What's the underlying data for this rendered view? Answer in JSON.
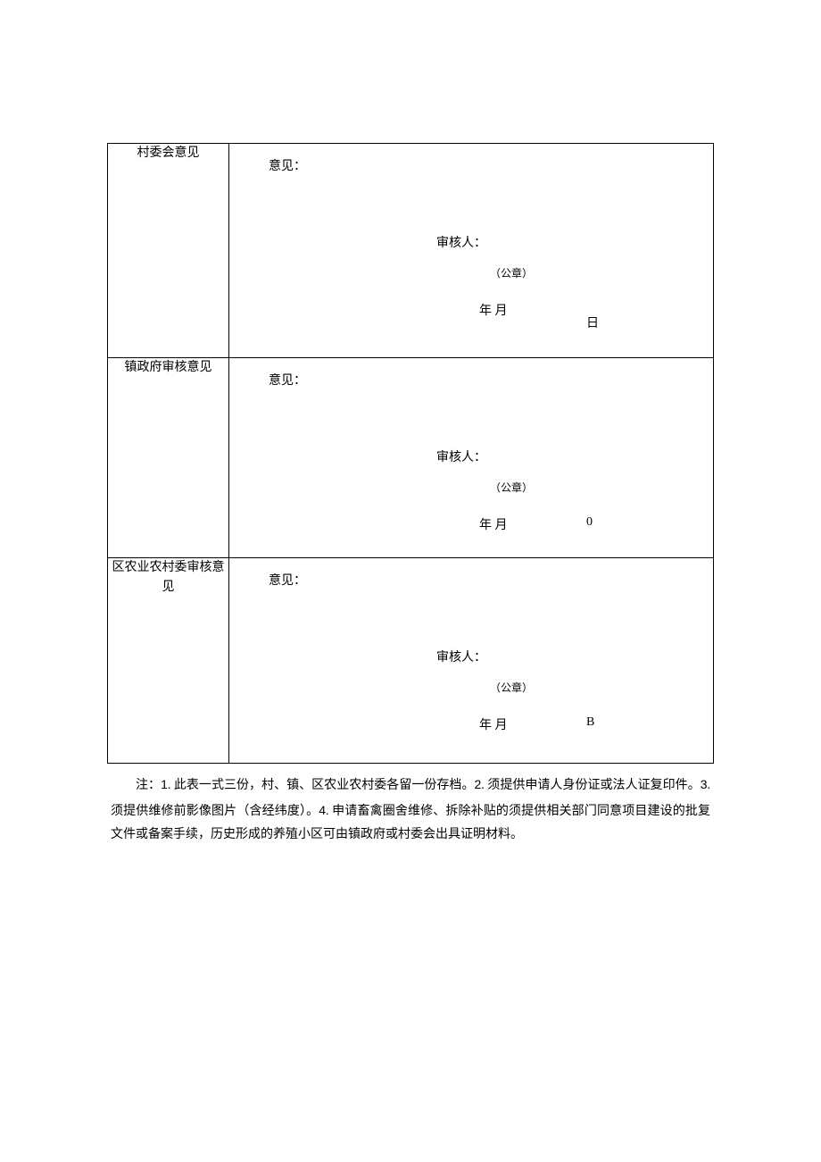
{
  "rows": [
    {
      "label": "村委会意见",
      "opinion_label": "意见：",
      "reviewer_label": "审核人：",
      "seal_label": "（公章）",
      "date_label": "年 月",
      "date_suffix": "日"
    },
    {
      "label": "镇政府审核意见",
      "opinion_label": "意见：",
      "reviewer_label": "审核人：",
      "seal_label": "（公章）",
      "date_label": "年 月",
      "date_suffix": "0"
    },
    {
      "label": "区农业农村委审核意见",
      "opinion_label": "意见：",
      "reviewer_label": "审核人：",
      "seal_label": "（公章）",
      "date_label": "年 月",
      "date_suffix": "B"
    }
  ],
  "notes": {
    "prefix": "注：",
    "items": [
      {
        "num": "1",
        "text": ". 此表一式三份，村、镇、区农业农村委各留一份存档。"
      },
      {
        "num": "2",
        "text": ". 须提供申请人身份证或法人证复印件。"
      },
      {
        "num": "3",
        "text": ". 须提供维修前影像图片（含经纬度）。"
      },
      {
        "num": "4",
        "text": ". 申请畜禽圈舍维修、拆除补贴的须提供相关部门同意项目建设的批复文件或备案手续，历史形成的养殖小区可由镇政府或村委会出具证明材料。"
      }
    ]
  }
}
